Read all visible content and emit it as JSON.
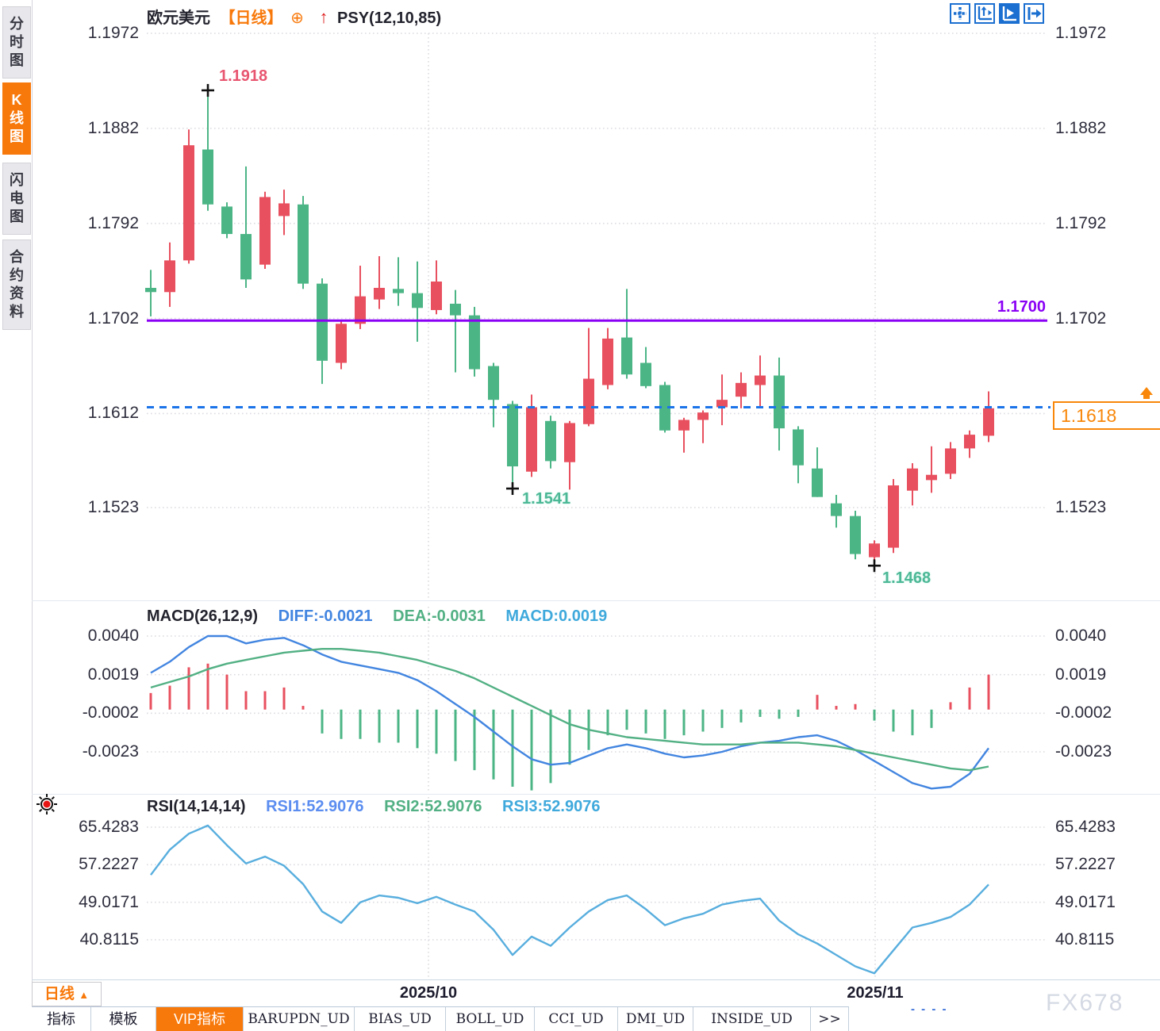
{
  "sidebar": {
    "tabs": [
      {
        "label": "分时图",
        "active": false
      },
      {
        "label": "K线图",
        "active": true
      },
      {
        "label": "闪电图",
        "active": false
      },
      {
        "label": "合约资料",
        "active": false
      }
    ]
  },
  "header": {
    "symbol": "欧元美元",
    "period_tag": "【日线】",
    "overlay_icon": "⊕",
    "arrow_icon": "↑",
    "indicator": "PSY(12,10,85)"
  },
  "toolbar_icons": [
    {
      "name": "crosshair-move-icon",
      "active": false
    },
    {
      "name": "axis-scale-icon",
      "active": false
    },
    {
      "name": "axis-play-icon",
      "active": true
    },
    {
      "name": "pan-right-icon",
      "active": false
    }
  ],
  "price_axis": {
    "labels": [
      "1.1972",
      "1.1882",
      "1.1792",
      "1.1702",
      "1.1612",
      "1.1523"
    ]
  },
  "macd_panel": {
    "title": "MACD(26,12,9)",
    "diff_label": "DIFF:-0.0021",
    "dea_label": "DEA:-0.0031",
    "macd_label": "MACD:0.0019",
    "axis_labels": [
      "0.0040",
      "0.0019",
      "-0.0002",
      "-0.0023"
    ]
  },
  "rsi_panel": {
    "title": "RSI(14,14,14)",
    "rsi1_label": "RSI1:52.9076",
    "rsi2_label": "RSI2:52.9076",
    "rsi3_label": "RSI3:52.9076",
    "axis_labels": [
      "65.4283",
      "57.2227",
      "49.0171",
      "40.8115"
    ]
  },
  "xaxis": {
    "period_label": "日线",
    "period_arrow": "▲",
    "labels": [
      "2025/10",
      "2025/11"
    ]
  },
  "bottom_tabs": [
    {
      "label": "指标",
      "active": false
    },
    {
      "label": "模板",
      "active": false
    },
    {
      "label": "VIP指标",
      "active": true
    },
    {
      "label": "BARUPDN_UD",
      "active": false
    },
    {
      "label": "BIAS_UD",
      "active": false
    },
    {
      "label": "BOLL_UD",
      "active": false
    },
    {
      "label": "CCI_UD",
      "active": false
    },
    {
      "label": "DMI_UD",
      "active": false
    },
    {
      "label": "INSIDE_UD",
      "active": false
    },
    {
      "label": ">>",
      "active": false
    }
  ],
  "footer": {
    "dashes": "- -  - -",
    "watermark": "FX678"
  },
  "colors": {
    "up": "#e8505f",
    "down": "#4cb586",
    "hline": "#8a00f5",
    "last_line": "#1b74e8",
    "accent_orange": "#f8790b",
    "diff_line": "#4285e0",
    "dea_line": "#52b084",
    "rsi_line": "#58aede",
    "grid": "#dcdce2",
    "annotation_red": "#e85570",
    "annotation_green": "#4db896"
  },
  "chart_data": {
    "type": "candlestick",
    "title": "欧元美元 日线",
    "price_ticks": [
      1.1972,
      1.1882,
      1.1792,
      1.1702,
      1.1612,
      1.1523
    ],
    "x_tick_labels": [
      "2025/10",
      "2025/11"
    ],
    "hline": 1.17,
    "hline_label": "1.1700",
    "last_price": 1.1618,
    "last_price_label": "1.1618",
    "markers": {
      "peak": {
        "index": 3,
        "kind": "high",
        "label": "1.1918"
      },
      "low1": {
        "index": 19,
        "kind": "low",
        "label": "1.1541"
      },
      "low2": {
        "index": 38,
        "kind": "low",
        "label": "1.1468"
      }
    },
    "candles": [
      [
        1.1731,
        1.1748,
        1.1704,
        1.1727
      ],
      [
        1.1727,
        1.1774,
        1.1713,
        1.1757
      ],
      [
        1.1757,
        1.1881,
        1.1754,
        1.1866
      ],
      [
        1.1862,
        1.1918,
        1.1804,
        1.181
      ],
      [
        1.1808,
        1.1812,
        1.1778,
        1.1782
      ],
      [
        1.1782,
        1.1846,
        1.1731,
        1.1739
      ],
      [
        1.1753,
        1.1822,
        1.1749,
        1.1817
      ],
      [
        1.1799,
        1.1824,
        1.1781,
        1.1811
      ],
      [
        1.181,
        1.1818,
        1.173,
        1.1735
      ],
      [
        1.1735,
        1.174,
        1.164,
        1.1662
      ],
      [
        1.166,
        1.17,
        1.1654,
        1.1697
      ],
      [
        1.1697,
        1.1752,
        1.1692,
        1.1723
      ],
      [
        1.172,
        1.1761,
        1.1711,
        1.1731
      ],
      [
        1.173,
        1.176,
        1.1714,
        1.1726
      ],
      [
        1.1726,
        1.1756,
        1.168,
        1.1712
      ],
      [
        1.171,
        1.1757,
        1.1706,
        1.1737
      ],
      [
        1.1716,
        1.1729,
        1.1651,
        1.1705
      ],
      [
        1.1705,
        1.1713,
        1.1647,
        1.1654
      ],
      [
        1.1657,
        1.166,
        1.1599,
        1.1625
      ],
      [
        1.1621,
        1.1624,
        1.1541,
        1.1562
      ],
      [
        1.1557,
        1.163,
        1.1552,
        1.1618
      ],
      [
        1.1605,
        1.161,
        1.156,
        1.1567
      ],
      [
        1.1566,
        1.1605,
        1.154,
        1.1603
      ],
      [
        1.1602,
        1.1693,
        1.16,
        1.1645
      ],
      [
        1.1639,
        1.1693,
        1.1635,
        1.1683
      ],
      [
        1.1684,
        1.173,
        1.1645,
        1.1649
      ],
      [
        1.166,
        1.1675,
        1.1636,
        1.1638
      ],
      [
        1.1639,
        1.1642,
        1.1594,
        1.1596
      ],
      [
        1.1596,
        1.1608,
        1.1575,
        1.1606
      ],
      [
        1.1606,
        1.1615,
        1.1584,
        1.1613
      ],
      [
        1.1618,
        1.1649,
        1.1601,
        1.1625
      ],
      [
        1.1628,
        1.1651,
        1.1617,
        1.1641
      ],
      [
        1.1639,
        1.1667,
        1.1618,
        1.1648
      ],
      [
        1.1648,
        1.1665,
        1.1577,
        1.1598
      ],
      [
        1.1597,
        1.16,
        1.1546,
        1.1563
      ],
      [
        1.156,
        1.158,
        1.1533,
        1.1533
      ],
      [
        1.1527,
        1.1535,
        1.1504,
        1.1515
      ],
      [
        1.1515,
        1.152,
        1.1474,
        1.1479
      ],
      [
        1.1476,
        1.1492,
        1.1468,
        1.1489
      ],
      [
        1.1485,
        1.155,
        1.148,
        1.1544
      ],
      [
        1.1539,
        1.1565,
        1.1525,
        1.156
      ],
      [
        1.1549,
        1.1581,
        1.1537,
        1.1554
      ],
      [
        1.1555,
        1.1585,
        1.155,
        1.1579
      ],
      [
        1.1579,
        1.1596,
        1.157,
        1.1592
      ],
      [
        1.1591,
        1.1633,
        1.1585,
        1.1617
      ]
    ],
    "macd": {
      "ticks": [
        0.004,
        0.0019,
        -0.0002,
        -0.0023
      ],
      "diff": [
        0.002,
        0.0026,
        0.0034,
        0.004,
        0.004,
        0.0036,
        0.0038,
        0.0039,
        0.0035,
        0.003,
        0.0026,
        0.0024,
        0.0022,
        0.002,
        0.0016,
        0.001,
        0.0003,
        -0.0004,
        -0.0012,
        -0.002,
        -0.0027,
        -0.003,
        -0.0029,
        -0.0025,
        -0.0021,
        -0.0019,
        -0.0021,
        -0.0024,
        -0.0026,
        -0.0025,
        -0.0023,
        -0.002,
        -0.0018,
        -0.0017,
        -0.0015,
        -0.0014,
        -0.0017,
        -0.0022,
        -0.0028,
        -0.0034,
        -0.004,
        -0.0043,
        -0.0042,
        -0.0035,
        -0.0021
      ],
      "dea": [
        0.0012,
        0.0015,
        0.0018,
        0.0022,
        0.0025,
        0.0027,
        0.0029,
        0.0031,
        0.0032,
        0.0033,
        0.0033,
        0.0032,
        0.0031,
        0.0029,
        0.0027,
        0.0024,
        0.0021,
        0.0017,
        0.0012,
        0.0007,
        0.0002,
        -0.0003,
        -0.0008,
        -0.0011,
        -0.0013,
        -0.0015,
        -0.0016,
        -0.0017,
        -0.0018,
        -0.0019,
        -0.0019,
        -0.0019,
        -0.0018,
        -0.0018,
        -0.0018,
        -0.0019,
        -0.002,
        -0.0022,
        -0.0024,
        -0.0026,
        -0.0028,
        -0.003,
        -0.0032,
        -0.0033,
        -0.0031
      ],
      "hist": [
        0.0009,
        0.0013,
        0.0023,
        0.0025,
        0.0019,
        0.001,
        0.001,
        0.0012,
        0.0002,
        -0.0013,
        -0.0016,
        -0.0016,
        -0.0018,
        -0.0018,
        -0.0021,
        -0.0024,
        -0.0028,
        -0.0033,
        -0.0038,
        -0.0042,
        -0.0044,
        -0.004,
        -0.003,
        -0.0022,
        -0.0014,
        -0.0011,
        -0.0013,
        -0.0016,
        -0.0014,
        -0.0012,
        -0.001,
        -0.0007,
        -0.0004,
        -0.0005,
        -0.0004,
        0.0008,
        0.0002,
        0.0003,
        -0.0006,
        -0.0012,
        -0.0014,
        -0.001,
        0.0004,
        0.0012,
        0.0019
      ]
    },
    "rsi": {
      "ticks": [
        65.4283,
        57.2227,
        49.0171,
        40.8115
      ],
      "values": [
        55,
        60.5,
        64,
        65.8,
        61.5,
        57.5,
        59,
        57,
        53,
        47,
        44.5,
        49,
        50.5,
        50,
        48.8,
        50.2,
        48.5,
        47,
        43,
        37.5,
        41.5,
        39.5,
        43.5,
        47,
        49.5,
        50.5,
        47.5,
        44,
        45.5,
        46.5,
        48.5,
        49.3,
        49.8,
        45,
        42,
        40,
        37.5,
        35,
        33.5,
        38.5,
        43.5,
        44.5,
        45.8,
        48.5,
        52.9
      ]
    }
  }
}
